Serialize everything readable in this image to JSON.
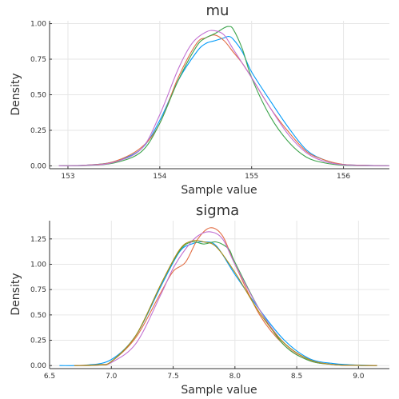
{
  "chart_data": [
    {
      "type": "line",
      "title": "mu",
      "xlabel": "Sample value",
      "ylabel": "Density",
      "xlim": [
        152.8,
        156.5
      ],
      "ylim": [
        -0.02,
        1.02
      ],
      "xticks": [
        153,
        154,
        155,
        156
      ],
      "xtick_labels": [
        "153",
        "154",
        "155",
        "156"
      ],
      "yticks": [
        0,
        0.25,
        0.5,
        0.75,
        1.0
      ],
      "ytick_labels": [
        "0.00",
        "0.25",
        "0.50",
        "0.75",
        "1.00"
      ],
      "grid": true,
      "legend": "none",
      "series": [
        {
          "color": "#009af9",
          "x": [
            152.9,
            153.2,
            153.5,
            153.8,
            154.0,
            154.2,
            154.4,
            154.5,
            154.6,
            154.7,
            154.75,
            154.8,
            154.9,
            155.0,
            155.2,
            155.4,
            155.6,
            155.8,
            156.0,
            156.3,
            156.5
          ],
          "y": [
            0,
            0.005,
            0.03,
            0.12,
            0.32,
            0.6,
            0.8,
            0.86,
            0.88,
            0.9,
            0.91,
            0.89,
            0.8,
            0.66,
            0.46,
            0.27,
            0.11,
            0.04,
            0.01,
            0.003,
            0
          ]
        },
        {
          "color": "#e26f46",
          "x": [
            152.9,
            153.2,
            153.5,
            153.8,
            154.0,
            154.2,
            154.4,
            154.5,
            154.6,
            154.7,
            154.8,
            154.9,
            155.0,
            155.2,
            155.4,
            155.6,
            155.8,
            156.0,
            156.3,
            156.5
          ],
          "y": [
            0,
            0.005,
            0.03,
            0.13,
            0.3,
            0.62,
            0.86,
            0.9,
            0.92,
            0.88,
            0.8,
            0.72,
            0.62,
            0.41,
            0.24,
            0.1,
            0.04,
            0.01,
            0.003,
            0
          ]
        },
        {
          "color": "#3da44d",
          "x": [
            152.9,
            153.2,
            153.5,
            153.8,
            154.0,
            154.2,
            154.4,
            154.5,
            154.6,
            154.7,
            154.75,
            154.8,
            154.9,
            155.0,
            155.2,
            155.4,
            155.6,
            155.8,
            156.0,
            156.3,
            156.5
          ],
          "y": [
            0,
            0.003,
            0.02,
            0.1,
            0.3,
            0.6,
            0.84,
            0.9,
            0.93,
            0.97,
            0.98,
            0.96,
            0.82,
            0.62,
            0.35,
            0.17,
            0.06,
            0.02,
            0.005,
            0.001,
            0
          ]
        },
        {
          "color": "#c271d2",
          "x": [
            152.9,
            153.2,
            153.5,
            153.8,
            154.0,
            154.2,
            154.35,
            154.5,
            154.6,
            154.7,
            154.8,
            154.9,
            155.0,
            155.2,
            155.4,
            155.6,
            155.8,
            156.0,
            156.3,
            156.5
          ],
          "y": [
            0,
            0.004,
            0.025,
            0.12,
            0.36,
            0.68,
            0.86,
            0.94,
            0.95,
            0.92,
            0.82,
            0.72,
            0.62,
            0.41,
            0.22,
            0.09,
            0.03,
            0.008,
            0.002,
            0
          ]
        }
      ]
    },
    {
      "type": "line",
      "title": "sigma",
      "xlabel": "Sample value",
      "ylabel": "Density",
      "xlim": [
        6.5,
        9.25
      ],
      "ylim": [
        -0.03,
        1.43
      ],
      "xticks": [
        6.5,
        7.0,
        7.5,
        8.0,
        8.5,
        9.0
      ],
      "xtick_labels": [
        "6.5",
        "7.0",
        "7.5",
        "8.0",
        "8.5",
        "9.0"
      ],
      "yticks": [
        0,
        0.25,
        0.5,
        0.75,
        1.0,
        1.25
      ],
      "ytick_labels": [
        "0.00",
        "0.25",
        "0.50",
        "0.75",
        "1.00",
        "1.25"
      ],
      "grid": true,
      "legend": "none",
      "series": [
        {
          "color": "#009af9",
          "x": [
            6.58,
            6.8,
            7.0,
            7.2,
            7.4,
            7.55,
            7.65,
            7.75,
            7.85,
            8.0,
            8.2,
            8.4,
            8.6,
            8.8,
            9.0,
            9.15
          ],
          "y": [
            0,
            0.005,
            0.06,
            0.3,
            0.78,
            1.12,
            1.2,
            1.22,
            1.18,
            0.9,
            0.55,
            0.25,
            0.07,
            0.02,
            0.005,
            0
          ]
        },
        {
          "color": "#e26f46",
          "x": [
            6.7,
            6.9,
            7.0,
            7.2,
            7.4,
            7.5,
            7.6,
            7.7,
            7.8,
            7.9,
            8.0,
            8.2,
            8.4,
            8.6,
            8.8,
            9.0,
            9.15
          ],
          "y": [
            0,
            0.01,
            0.04,
            0.28,
            0.72,
            0.93,
            1.02,
            1.25,
            1.36,
            1.28,
            1.0,
            0.5,
            0.2,
            0.05,
            0.01,
            0.002,
            0
          ]
        },
        {
          "color": "#3da44d",
          "x": [
            6.7,
            6.9,
            7.0,
            7.2,
            7.4,
            7.55,
            7.65,
            7.75,
            7.85,
            7.95,
            8.0,
            8.2,
            8.4,
            8.6,
            8.8,
            9.0,
            9.15
          ],
          "y": [
            0,
            0.008,
            0.04,
            0.3,
            0.8,
            1.13,
            1.22,
            1.2,
            1.22,
            1.15,
            1.02,
            0.55,
            0.2,
            0.05,
            0.01,
            0.002,
            0
          ]
        },
        {
          "color": "#c271d2",
          "x": [
            6.7,
            6.9,
            7.0,
            7.2,
            7.4,
            7.5,
            7.6,
            7.7,
            7.8,
            7.9,
            8.0,
            8.2,
            8.4,
            8.6,
            8.8,
            9.0,
            9.15
          ],
          "y": [
            0,
            0.005,
            0.03,
            0.22,
            0.7,
            0.96,
            1.15,
            1.28,
            1.32,
            1.25,
            1.0,
            0.55,
            0.22,
            0.06,
            0.01,
            0.002,
            0
          ]
        },
        {
          "color": "#ac8d18",
          "x": [
            6.7,
            6.9,
            7.0,
            7.2,
            7.4,
            7.55,
            7.65,
            7.75,
            7.85,
            8.0,
            8.2,
            8.4,
            8.6,
            8.8,
            9.0,
            9.15
          ],
          "y": [
            0,
            0.006,
            0.04,
            0.3,
            0.8,
            1.14,
            1.23,
            1.22,
            1.17,
            0.92,
            0.52,
            0.22,
            0.06,
            0.01,
            0.002,
            0
          ]
        }
      ]
    }
  ]
}
